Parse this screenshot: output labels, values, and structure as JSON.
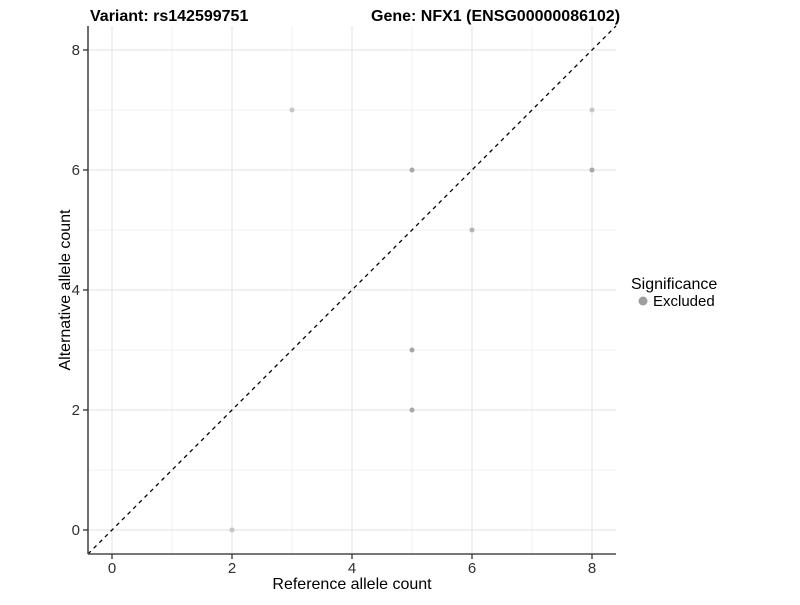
{
  "titles": {
    "variant": "Variant: rs142599751",
    "gene": "Gene: NFX1 (ENSG00000086102)"
  },
  "axes": {
    "x_label": "Reference allele count",
    "y_label": "Alternative allele count"
  },
  "legend": {
    "title": "Significance",
    "items": [
      {
        "label": "Excluded",
        "color": "#9e9e9e"
      }
    ]
  },
  "colors": {
    "point_shades": {
      "light": "#c6c6c6",
      "medium": "#b4b4b4",
      "dark": "#a7a7a7"
    },
    "grid_major": "#e6e6e6",
    "grid_minor": "#f2f2f2",
    "axis_line": "#4a4a4a",
    "tick_mark": "#333333",
    "reference_line": "#000000"
  },
  "chart_data": {
    "type": "scatter",
    "title": "Variant: rs142599751   Gene: NFX1 (ENSG00000086102)",
    "xlabel": "Reference allele count",
    "ylabel": "Alternative allele count",
    "xlim": [
      -0.4,
      8.4
    ],
    "ylim": [
      -0.4,
      8.4
    ],
    "x_ticks": [
      0,
      2,
      4,
      6,
      8
    ],
    "y_ticks": [
      0,
      2,
      4,
      6,
      8
    ],
    "x_minor_ticks": [
      1,
      3,
      5,
      7
    ],
    "y_minor_ticks": [
      1,
      3,
      5,
      7
    ],
    "grid": "major+minor",
    "legend_position": "right",
    "reference_line": {
      "type": "identity",
      "equation": "y = x",
      "style": "dashed",
      "color": "#000000"
    },
    "series": [
      {
        "name": "Excluded",
        "points": [
          {
            "x": 2,
            "y": 0,
            "shade": "light"
          },
          {
            "x": 3,
            "y": 7,
            "shade": "light"
          },
          {
            "x": 5,
            "y": 2,
            "shade": "dark"
          },
          {
            "x": 5,
            "y": 3,
            "shade": "dark"
          },
          {
            "x": 5,
            "y": 6,
            "shade": "dark"
          },
          {
            "x": 6,
            "y": 5,
            "shade": "medium"
          },
          {
            "x": 8,
            "y": 6,
            "shade": "dark"
          },
          {
            "x": 8,
            "y": 7,
            "shade": "light"
          }
        ]
      }
    ]
  }
}
